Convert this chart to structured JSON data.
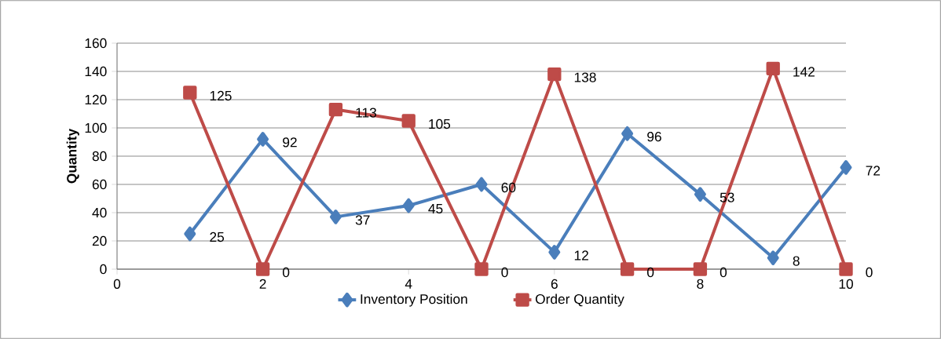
{
  "chart_data": {
    "type": "line",
    "ylabel": "Quantity",
    "x": [
      1,
      2,
      3,
      4,
      5,
      6,
      7,
      8,
      9,
      10
    ],
    "series": [
      {
        "name": "Inventory Position",
        "color": "#4a7ebb",
        "marker": "diamond",
        "values": [
          25,
          92,
          37,
          45,
          60,
          12,
          96,
          53,
          8,
          72
        ]
      },
      {
        "name": "Order Quantity",
        "color": "#be4b48",
        "marker": "square",
        "values": [
          125,
          0,
          113,
          105,
          0,
          138,
          0,
          0,
          142,
          0
        ]
      }
    ],
    "xlim": [
      0,
      10
    ],
    "xticks": [
      0,
      2,
      4,
      6,
      8,
      10
    ],
    "ylim": [
      0,
      160
    ],
    "yticks": [
      0,
      20,
      40,
      60,
      80,
      100,
      120,
      140,
      160
    ],
    "grid": "y",
    "legend": "bottom",
    "data_labels": true,
    "line_style": "solid"
  }
}
